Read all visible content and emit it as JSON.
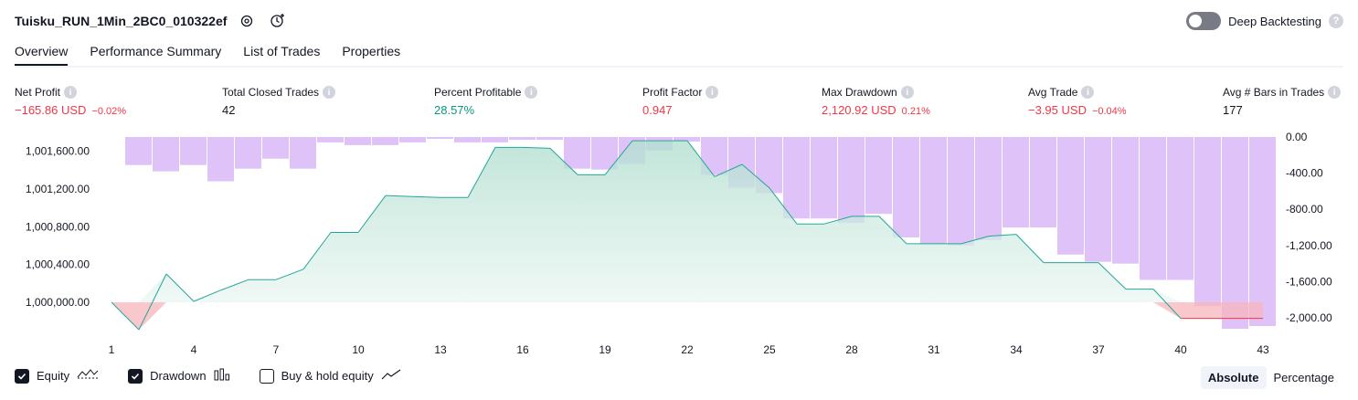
{
  "header": {
    "title": "Tuisku_RUN_1Min_2BC0_010322ef",
    "deep_backtesting_label": "Deep Backtesting"
  },
  "tabs": [
    {
      "label": "Overview"
    },
    {
      "label": "Performance Summary"
    },
    {
      "label": "List of Trades"
    },
    {
      "label": "Properties"
    }
  ],
  "metrics": [
    {
      "label": "Net Profit",
      "value": "−165.86 USD",
      "pct": "−0.02%",
      "color": "#f23645"
    },
    {
      "label": "Total Closed Trades",
      "value": "42",
      "pct": "",
      "color": "#131722"
    },
    {
      "label": "Percent Profitable",
      "value": "28.57%",
      "pct": "",
      "color": "#089981"
    },
    {
      "label": "Profit Factor",
      "value": "0.947",
      "pct": "",
      "color": "#f23645"
    },
    {
      "label": "Max Drawdown",
      "value": "2,120.92 USD",
      "pct": "0.21%",
      "color": "#f23645"
    },
    {
      "label": "Avg Trade",
      "value": "−3.95 USD",
      "pct": "−0.04%",
      "color": "#f23645"
    },
    {
      "label": "Avg # Bars in Trades",
      "value": "177",
      "pct": "",
      "color": "#131722"
    }
  ],
  "legend": {
    "equity": "Equity",
    "drawdown": "Drawdown",
    "buy_hold": "Buy & hold equity"
  },
  "modes": {
    "absolute": "Absolute",
    "percentage": "Percentage"
  },
  "chart_data": {
    "type": "line",
    "x_ticks": [
      "1",
      "4",
      "7",
      "10",
      "13",
      "16",
      "19",
      "22",
      "25",
      "28",
      "31",
      "34",
      "37",
      "40",
      "43"
    ],
    "y_left_ticks": [
      "1,000,000.00",
      "1,000,400.00",
      "1,000,800.00",
      "1,001,200.00",
      "1,001,600.00"
    ],
    "y_right_ticks": [
      "0.00",
      "-400.00",
      "-800.00",
      "-1,200.00",
      "-1,600.00",
      "-2,000.00"
    ],
    "equity_ylim": [
      999720,
      1001750
    ],
    "drawdown_ylim": [
      -2120,
      0
    ],
    "series": [
      {
        "name": "Equity",
        "x": [
          1,
          2,
          3,
          4,
          5,
          6,
          7,
          8,
          9,
          10,
          11,
          12,
          13,
          14,
          15,
          16,
          17,
          18,
          19,
          20,
          21,
          22,
          23,
          24,
          25,
          26,
          27,
          28,
          29,
          30,
          31,
          32,
          33,
          34,
          35,
          36,
          37,
          38,
          39,
          40,
          41,
          42,
          43
        ],
        "values": [
          1000000,
          999710,
          1000300,
          1000010,
          1000130,
          1000240,
          1000240,
          1000350,
          1000740,
          1000740,
          1001130,
          1001120,
          1001110,
          1001110,
          1001640,
          1001640,
          1001630,
          1001350,
          1001350,
          1001710,
          1001710,
          1001710,
          1001330,
          1001460,
          1001210,
          1000830,
          1000830,
          1000910,
          1000910,
          1000620,
          1000620,
          1000620,
          1000700,
          1000720,
          1000420,
          1000420,
          1000420,
          1000140,
          1000140,
          999830,
          999830,
          999830,
          999830
        ]
      },
      {
        "name": "Drawdown",
        "x": [
          1,
          2,
          3,
          4,
          5,
          6,
          7,
          8,
          9,
          10,
          11,
          12,
          13,
          14,
          15,
          16,
          17,
          18,
          19,
          20,
          21,
          22,
          23,
          24,
          25,
          26,
          27,
          28,
          29,
          30,
          31,
          32,
          33,
          34,
          35,
          36,
          37,
          38,
          39,
          40,
          41,
          42,
          43
        ],
        "values": [
          0,
          -310,
          -380,
          -310,
          -490,
          -350,
          -240,
          -350,
          -60,
          -90,
          -90,
          -60,
          -20,
          -60,
          -60,
          -30,
          -30,
          -350,
          -360,
          -300,
          -150,
          -50,
          -420,
          -560,
          -620,
          -900,
          -900,
          -950,
          -850,
          -1110,
          -1180,
          -1200,
          -1140,
          -1000,
          -1000,
          -1300,
          -1380,
          -1400,
          -1580,
          -1580,
          -1870,
          -2120,
          -2090
        ]
      }
    ]
  }
}
